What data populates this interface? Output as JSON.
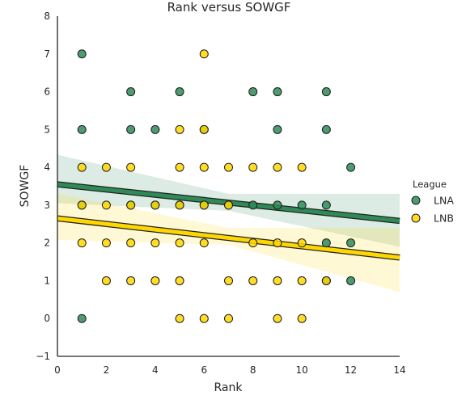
{
  "chart_data": {
    "type": "scatter",
    "title": "Rank versus SOWGF",
    "xlabel": "Rank",
    "ylabel": "SOWGF",
    "xlim": [
      0,
      14
    ],
    "ylim": [
      -1,
      8
    ],
    "x_ticks": [
      "0",
      "2",
      "4",
      "6",
      "8",
      "10",
      "12",
      "14"
    ],
    "y_ticks": [
      "−1",
      "0",
      "1",
      "2",
      "3",
      "4",
      "5",
      "6",
      "7",
      "8"
    ],
    "grid": false,
    "legend": {
      "title": "League",
      "placement": "right"
    },
    "series": [
      {
        "name": "LNA",
        "color": "#2e8b57",
        "points": [
          [
            1,
            7
          ],
          [
            1,
            5
          ],
          [
            1,
            3
          ],
          [
            1,
            0
          ],
          [
            3,
            6
          ],
          [
            3,
            5
          ],
          [
            3,
            3
          ],
          [
            4,
            5
          ],
          [
            4,
            3
          ],
          [
            5,
            6
          ],
          [
            5,
            3
          ],
          [
            6,
            5
          ],
          [
            6,
            3
          ],
          [
            7,
            3
          ],
          [
            8,
            6
          ],
          [
            8,
            3
          ],
          [
            9,
            6
          ],
          [
            9,
            5
          ],
          [
            9,
            3
          ],
          [
            10,
            3
          ],
          [
            11,
            6
          ],
          [
            11,
            5
          ],
          [
            11,
            3
          ],
          [
            11,
            2
          ],
          [
            11,
            1
          ],
          [
            12,
            4
          ],
          [
            12,
            2
          ],
          [
            12,
            1
          ]
        ],
        "regression": {
          "intercept": 3.55,
          "slope": -0.069
        },
        "ci": [
          [
            0,
            3.05,
            4.33
          ],
          [
            7,
            2.85,
            3.3
          ],
          [
            14,
            1.9,
            3.3
          ]
        ]
      },
      {
        "name": "LNB",
        "color": "#ffd700",
        "points": [
          [
            1,
            4
          ],
          [
            1,
            3
          ],
          [
            1,
            2
          ],
          [
            2,
            4
          ],
          [
            2,
            3
          ],
          [
            2,
            2
          ],
          [
            2,
            1
          ],
          [
            3,
            4
          ],
          [
            3,
            3
          ],
          [
            3,
            2
          ],
          [
            3,
            1
          ],
          [
            4,
            3
          ],
          [
            4,
            2
          ],
          [
            4,
            1
          ],
          [
            5,
            5
          ],
          [
            5,
            4
          ],
          [
            5,
            3
          ],
          [
            5,
            2
          ],
          [
            5,
            1
          ],
          [
            5,
            0
          ],
          [
            6,
            7
          ],
          [
            6,
            5
          ],
          [
            6,
            4
          ],
          [
            6,
            3
          ],
          [
            6,
            2
          ],
          [
            6,
            0
          ],
          [
            7,
            4
          ],
          [
            7,
            3
          ],
          [
            7,
            1
          ],
          [
            7,
            0
          ],
          [
            8,
            4
          ],
          [
            8,
            2
          ],
          [
            8,
            1
          ],
          [
            9,
            4
          ],
          [
            9,
            2
          ],
          [
            9,
            1
          ],
          [
            9,
            0
          ],
          [
            10,
            4
          ],
          [
            10,
            2
          ],
          [
            10,
            1
          ],
          [
            10,
            0
          ],
          [
            11,
            1
          ]
        ],
        "regression": {
          "intercept": 2.65,
          "slope": -0.074
        },
        "ci": [
          [
            0,
            2.08,
            3.3
          ],
          [
            7,
            1.95,
            2.4
          ],
          [
            14,
            0.7,
            2.4
          ]
        ]
      }
    ]
  }
}
